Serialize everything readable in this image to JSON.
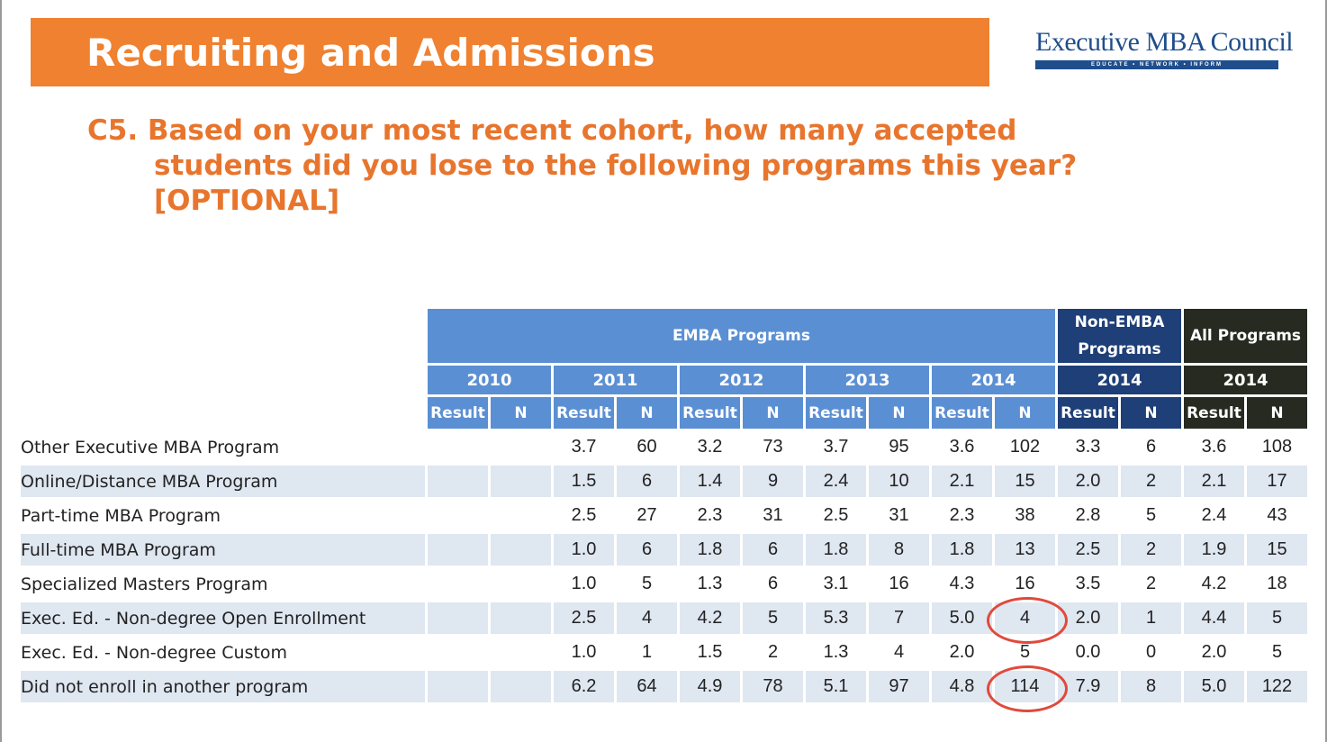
{
  "header": {
    "title": "Recruiting and Admissions",
    "logo_text": "Executive MBA Council",
    "logo_tagline": "EDUCATE • NETWORK • INFORM"
  },
  "question": {
    "line1": "C5. Based on your most recent cohort, how many accepted",
    "line2": "students did you lose to the following programs this year?",
    "line3": "[OPTIONAL]"
  },
  "table": {
    "groups": {
      "emba": "EMBA Programs",
      "non_emba": "Non-EMBA Programs",
      "all": "All Programs"
    },
    "years": [
      "2010",
      "2011",
      "2012",
      "2013",
      "2014",
      "2014",
      "2014"
    ],
    "col_result": "Result",
    "col_n": "N",
    "rows": [
      {
        "label": "Other Executive MBA Program",
        "values": [
          "",
          "",
          "3.7",
          "60",
          "3.2",
          "73",
          "3.7",
          "95",
          "3.6",
          "102",
          "3.3",
          "6",
          "3.6",
          "108"
        ]
      },
      {
        "label": "Online/Distance MBA Program",
        "values": [
          "",
          "",
          "1.5",
          "6",
          "1.4",
          "9",
          "2.4",
          "10",
          "2.1",
          "15",
          "2.0",
          "2",
          "2.1",
          "17"
        ]
      },
      {
        "label": "Part-time MBA Program",
        "values": [
          "",
          "",
          "2.5",
          "27",
          "2.3",
          "31",
          "2.5",
          "31",
          "2.3",
          "38",
          "2.8",
          "5",
          "2.4",
          "43"
        ]
      },
      {
        "label": "Full-time MBA Program",
        "values": [
          "",
          "",
          "1.0",
          "6",
          "1.8",
          "6",
          "1.8",
          "8",
          "1.8",
          "13",
          "2.5",
          "2",
          "1.9",
          "15"
        ]
      },
      {
        "label": "Specialized Masters Program",
        "values": [
          "",
          "",
          "1.0",
          "5",
          "1.3",
          "6",
          "3.1",
          "16",
          "4.3",
          "16",
          "3.5",
          "2",
          "4.2",
          "18"
        ]
      },
      {
        "label": "Exec. Ed.  - Non-degree Open Enrollment",
        "values": [
          "",
          "",
          "2.5",
          "4",
          "4.2",
          "5",
          "5.3",
          "7",
          "5.0",
          "4",
          "2.0",
          "1",
          "4.4",
          "5"
        ]
      },
      {
        "label": "Exec. Ed.  - Non-degree Custom",
        "values": [
          "",
          "",
          "1.0",
          "1",
          "1.5",
          "2",
          "1.3",
          "4",
          "2.0",
          "5",
          "0.0",
          "0",
          "2.0",
          "5"
        ]
      },
      {
        "label": "Did not enroll in another program",
        "values": [
          "",
          "",
          "6.2",
          "64",
          "4.9",
          "78",
          "5.1",
          "97",
          "4.8",
          "114",
          "7.9",
          "8",
          "5.0",
          "122"
        ]
      }
    ],
    "highlighted": [
      {
        "row": 5,
        "col": 9
      },
      {
        "row": 7,
        "col": 9
      }
    ],
    "colors": {
      "emba": "#5b8fd3",
      "non_emba": "#1e3f77",
      "all": "#262a20",
      "alt_row": "#dfe7f1",
      "highlight": "#e04a3c"
    }
  }
}
